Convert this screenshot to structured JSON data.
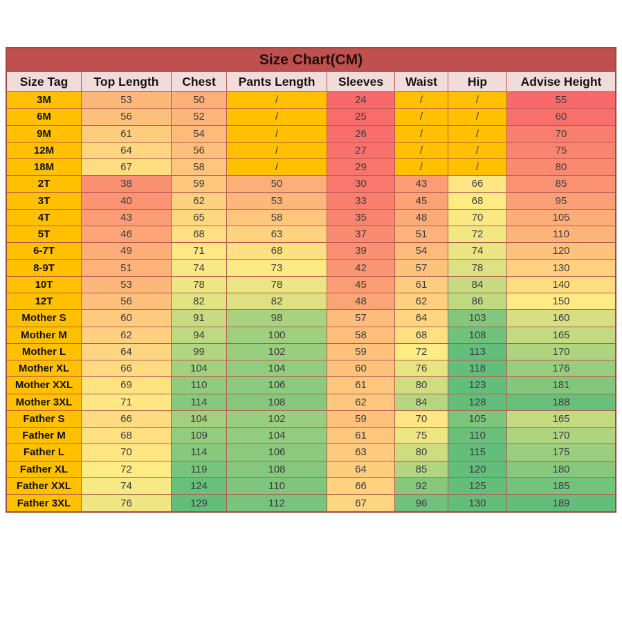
{
  "chart_data": {
    "type": "table",
    "title": "Size Chart(CM)",
    "columns": [
      "Size Tag",
      "Top Length",
      "Chest",
      "Pants Length",
      "Sleeves",
      "Waist",
      "Hip",
      "Advise Height"
    ],
    "rows": [
      {
        "tag": "3M",
        "values": [
          "53",
          "50",
          "/",
          "24",
          "/",
          "/",
          "55"
        ]
      },
      {
        "tag": "6M",
        "values": [
          "56",
          "52",
          "/",
          "25",
          "/",
          "/",
          "60"
        ]
      },
      {
        "tag": "9M",
        "values": [
          "61",
          "54",
          "/",
          "26",
          "/",
          "/",
          "70"
        ]
      },
      {
        "tag": "12M",
        "values": [
          "64",
          "56",
          "/",
          "27",
          "/",
          "/",
          "75"
        ]
      },
      {
        "tag": "18M",
        "values": [
          "67",
          "58",
          "/",
          "29",
          "/",
          "/",
          "80"
        ]
      },
      {
        "tag": "2T",
        "values": [
          "38",
          "59",
          "50",
          "30",
          "43",
          "66",
          "85"
        ]
      },
      {
        "tag": "3T",
        "values": [
          "40",
          "62",
          "53",
          "33",
          "45",
          "68",
          "95"
        ]
      },
      {
        "tag": "4T",
        "values": [
          "43",
          "65",
          "58",
          "35",
          "48",
          "70",
          "105"
        ]
      },
      {
        "tag": "5T",
        "values": [
          "46",
          "68",
          "63",
          "37",
          "51",
          "72",
          "110"
        ]
      },
      {
        "tag": "6-7T",
        "values": [
          "49",
          "71",
          "68",
          "39",
          "54",
          "74",
          "120"
        ]
      },
      {
        "tag": "8-9T",
        "values": [
          "51",
          "74",
          "73",
          "42",
          "57",
          "78",
          "130"
        ]
      },
      {
        "tag": "10T",
        "values": [
          "53",
          "78",
          "78",
          "45",
          "61",
          "84",
          "140"
        ]
      },
      {
        "tag": "12T",
        "values": [
          "56",
          "82",
          "82",
          "48",
          "62",
          "86",
          "150"
        ]
      },
      {
        "tag": "Mother S",
        "values": [
          "60",
          "91",
          "98",
          "57",
          "64",
          "103",
          "160"
        ]
      },
      {
        "tag": "Mother M",
        "values": [
          "62",
          "94",
          "100",
          "58",
          "68",
          "108",
          "165"
        ]
      },
      {
        "tag": "Mother L",
        "values": [
          "64",
          "99",
          "102",
          "59",
          "72",
          "113",
          "170"
        ]
      },
      {
        "tag": "Mother XL",
        "values": [
          "66",
          "104",
          "104",
          "60",
          "76",
          "118",
          "176"
        ]
      },
      {
        "tag": "Mother XXL",
        "values": [
          "69",
          "110",
          "106",
          "61",
          "80",
          "123",
          "181"
        ]
      },
      {
        "tag": "Mother 3XL",
        "values": [
          "71",
          "114",
          "108",
          "62",
          "84",
          "128",
          "188"
        ]
      },
      {
        "tag": "Father S",
        "values": [
          "66",
          "104",
          "102",
          "59",
          "70",
          "105",
          "165"
        ]
      },
      {
        "tag": "Father M",
        "values": [
          "68",
          "109",
          "104",
          "61",
          "75",
          "110",
          "170"
        ]
      },
      {
        "tag": "Father L",
        "values": [
          "70",
          "114",
          "106",
          "63",
          "80",
          "115",
          "175"
        ]
      },
      {
        "tag": "Father XL",
        "values": [
          "72",
          "119",
          "108",
          "64",
          "85",
          "120",
          "180"
        ]
      },
      {
        "tag": "Father XXL",
        "values": [
          "74",
          "124",
          "110",
          "66",
          "92",
          "125",
          "185"
        ]
      },
      {
        "tag": "Father 3XL",
        "values": [
          "76",
          "129",
          "112",
          "67",
          "96",
          "130",
          "189"
        ]
      }
    ],
    "missing_value_symbol": "/",
    "color_scale": {
      "low_color": "#F8696B",
      "mid_color": "#FFEB84",
      "high_color": "#63BE7B",
      "column_anchors": [
        [
          24,
          72,
          110
        ],
        [
          24,
          72,
          126
        ],
        [
          24,
          72,
          118
        ],
        [
          24,
          76,
          120
        ],
        [
          24,
          72,
          98
        ],
        [
          24,
          68,
          112
        ],
        [
          55,
          150,
          189
        ]
      ]
    },
    "layout_hints": {
      "legend_position": "none",
      "grid": "on"
    }
  },
  "colors": {
    "title_bg": "#C0504D",
    "header_bg": "#F2DCDB",
    "tag_column_bg": "#FFC000",
    "missing_cell_bg": "#FFC000",
    "grid_border": "#B85A4E",
    "outer_border": "#9E4A40",
    "data_text": "#3D3D3D"
  }
}
